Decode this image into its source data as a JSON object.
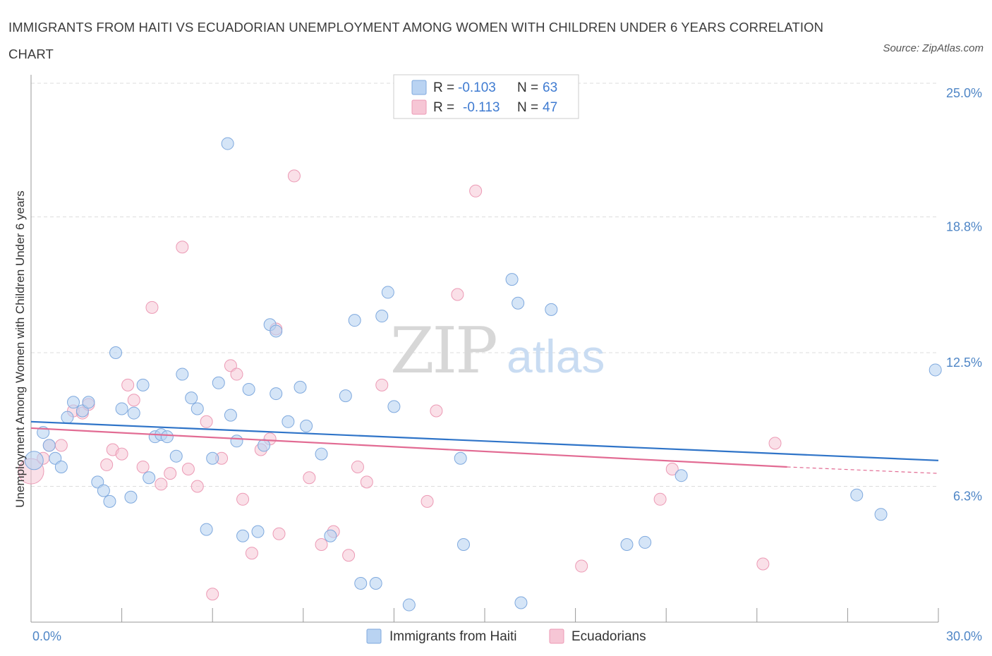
{
  "title": "IMMIGRANTS FROM HAITI VS ECUADORIAN UNEMPLOYMENT AMONG WOMEN WITH CHILDREN UNDER 6 YEARS CORRELATION CHART",
  "source": "Source: ZipAtlas.com",
  "watermark": {
    "zip": "ZIP",
    "atlas": "atlas"
  },
  "colors": {
    "haiti_fill": "#b9d3f2",
    "haiti_stroke": "#7fa9de",
    "haiti_line": "#2f74c8",
    "ecu_fill": "#f6c6d5",
    "ecu_stroke": "#ec9ab5",
    "ecu_line": "#e26b93",
    "tick_label": "#4f86c6",
    "grid": "#dddddd"
  },
  "legend": {
    "rows": [
      {
        "r_label": "R =",
        "r_value": "-0.103",
        "n_label": "N =",
        "n_value": "63"
      },
      {
        "r_label": "R =",
        "r_value": "-0.113",
        "n_label": "N =",
        "n_value": "47"
      }
    ]
  },
  "chart_data": {
    "type": "scatter",
    "ylabel": "Unemployment Among Women with Children Under 6 years",
    "x_tick_labels": [
      "0.0%",
      "30.0%"
    ],
    "y_tick_labels": [
      "6.3%",
      "12.5%",
      "18.8%",
      "25.0%"
    ],
    "y_ticks": [
      6.3,
      12.5,
      18.8,
      25.0
    ],
    "xlim": [
      0,
      30
    ],
    "ylim": [
      0,
      25.0
    ],
    "legend_position": "top-center",
    "grid": true,
    "series": [
      {
        "name": "Immigrants from Haiti",
        "trend": {
          "x": [
            0,
            30
          ],
          "y": [
            9.3,
            7.5
          ]
        },
        "points": [
          [
            0.1,
            7.5
          ],
          [
            0.4,
            8.8
          ],
          [
            0.6,
            8.2
          ],
          [
            0.8,
            7.6
          ],
          [
            1.0,
            7.2
          ],
          [
            1.2,
            9.5
          ],
          [
            1.4,
            10.2
          ],
          [
            1.7,
            9.8
          ],
          [
            1.9,
            10.2
          ],
          [
            2.2,
            6.5
          ],
          [
            2.4,
            6.1
          ],
          [
            2.6,
            5.6
          ],
          [
            2.8,
            12.5
          ],
          [
            3.0,
            9.9
          ],
          [
            3.3,
            5.8
          ],
          [
            3.4,
            9.7
          ],
          [
            3.7,
            11.0
          ],
          [
            3.9,
            6.7
          ],
          [
            4.1,
            8.6
          ],
          [
            4.3,
            8.7
          ],
          [
            4.5,
            8.6
          ],
          [
            4.8,
            7.7
          ],
          [
            5.0,
            11.5
          ],
          [
            5.3,
            10.4
          ],
          [
            5.5,
            9.9
          ],
          [
            5.8,
            4.3
          ],
          [
            6.0,
            7.6
          ],
          [
            6.2,
            11.1
          ],
          [
            6.5,
            22.2
          ],
          [
            6.6,
            9.6
          ],
          [
            6.8,
            8.4
          ],
          [
            7.0,
            4.0
          ],
          [
            7.2,
            10.8
          ],
          [
            7.5,
            4.2
          ],
          [
            7.7,
            8.2
          ],
          [
            7.9,
            13.8
          ],
          [
            8.1,
            10.6
          ],
          [
            8.1,
            13.5
          ],
          [
            8.5,
            9.3
          ],
          [
            8.9,
            10.9
          ],
          [
            9.1,
            9.1
          ],
          [
            9.6,
            7.8
          ],
          [
            9.9,
            4.0
          ],
          [
            10.4,
            10.5
          ],
          [
            10.7,
            14.0
          ],
          [
            10.9,
            1.8
          ],
          [
            11.4,
            1.8
          ],
          [
            11.6,
            14.2
          ],
          [
            11.8,
            15.3
          ],
          [
            12.0,
            10.0
          ],
          [
            12.5,
            0.8
          ],
          [
            14.2,
            7.6
          ],
          [
            14.3,
            3.6
          ],
          [
            15.9,
            15.9
          ],
          [
            16.1,
            14.8
          ],
          [
            16.2,
            0.9
          ],
          [
            17.2,
            14.5
          ],
          [
            19.7,
            3.6
          ],
          [
            20.3,
            3.7
          ],
          [
            21.5,
            6.8
          ],
          [
            27.3,
            5.9
          ],
          [
            28.1,
            5.0
          ],
          [
            29.9,
            11.7
          ]
        ]
      },
      {
        "name": "Ecuadorians",
        "trend": {
          "x": [
            0,
            25
          ],
          "y": [
            9.0,
            7.2
          ]
        },
        "trend_dashed": {
          "x": [
            25,
            30
          ],
          "y": [
            7.2,
            6.9
          ]
        },
        "points": [
          [
            0.0,
            7.0
          ],
          [
            0.4,
            7.6
          ],
          [
            0.6,
            8.2
          ],
          [
            1.0,
            8.2
          ],
          [
            1.4,
            9.8
          ],
          [
            1.7,
            9.7
          ],
          [
            1.9,
            10.1
          ],
          [
            2.5,
            7.3
          ],
          [
            2.7,
            8.0
          ],
          [
            3.0,
            7.8
          ],
          [
            3.2,
            11.0
          ],
          [
            3.4,
            10.3
          ],
          [
            3.7,
            7.2
          ],
          [
            4.0,
            14.6
          ],
          [
            4.3,
            6.4
          ],
          [
            4.6,
            6.9
          ],
          [
            5.0,
            17.4
          ],
          [
            5.2,
            7.1
          ],
          [
            5.5,
            6.3
          ],
          [
            5.8,
            9.3
          ],
          [
            6.0,
            1.3
          ],
          [
            6.3,
            7.6
          ],
          [
            6.6,
            11.9
          ],
          [
            6.8,
            11.5
          ],
          [
            7.0,
            5.7
          ],
          [
            7.3,
            3.2
          ],
          [
            7.6,
            8.0
          ],
          [
            7.9,
            8.5
          ],
          [
            8.1,
            13.6
          ],
          [
            8.2,
            4.1
          ],
          [
            8.7,
            20.7
          ],
          [
            9.2,
            6.7
          ],
          [
            9.6,
            3.6
          ],
          [
            10.0,
            4.2
          ],
          [
            10.5,
            3.1
          ],
          [
            10.8,
            7.2
          ],
          [
            11.1,
            6.5
          ],
          [
            11.6,
            11.0
          ],
          [
            13.1,
            5.6
          ],
          [
            13.4,
            9.8
          ],
          [
            14.1,
            15.2
          ],
          [
            14.7,
            20.0
          ],
          [
            18.2,
            2.6
          ],
          [
            20.8,
            5.7
          ],
          [
            21.2,
            7.1
          ],
          [
            24.2,
            2.7
          ],
          [
            24.6,
            8.3
          ]
        ]
      }
    ]
  }
}
